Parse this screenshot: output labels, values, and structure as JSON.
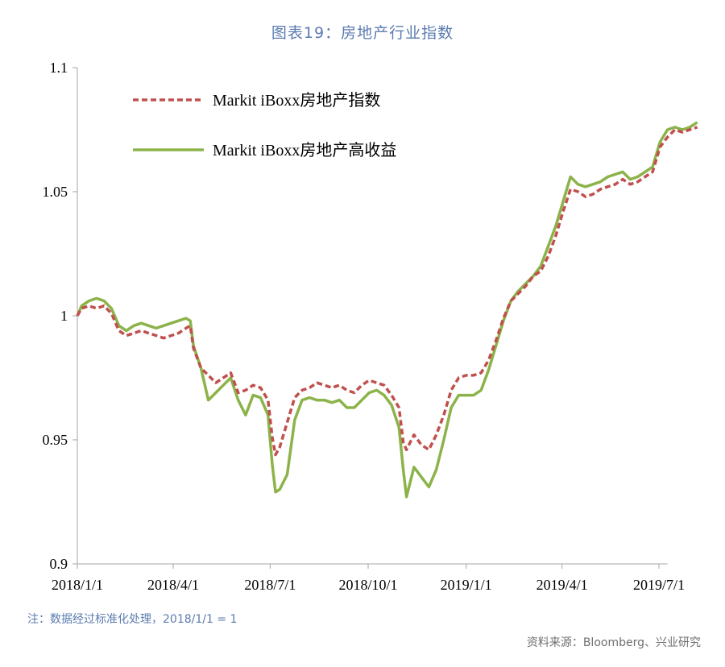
{
  "title": "图表19：房地产行业指数",
  "note": "注：数据经过标准化处理，2018/1/1 = 1",
  "source": "资料来源：Bloomberg、兴业研究",
  "chart_data": {
    "type": "line",
    "ylim": [
      0.9,
      1.1
    ],
    "yticks": [
      "0.9",
      "0.95",
      "1",
      "1.05",
      "1.1"
    ],
    "xticks": [
      "2018/1/1",
      "2018/4/1",
      "2018/7/1",
      "2018/10/1",
      "2019/1/1",
      "2019/4/1",
      "2019/7/1"
    ],
    "xrange": [
      "2018/1/1",
      "2019/7/9"
    ],
    "legend_position": "top-left",
    "series": [
      {
        "name": "Markit iBoxx房地产指数",
        "color": "#c0504d",
        "style": "dashed",
        "points": [
          [
            "2018/1/1",
            1.0
          ],
          [
            "2018/1/5",
            1.003
          ],
          [
            "2018/1/12",
            1.004
          ],
          [
            "2018/1/19",
            1.003
          ],
          [
            "2018/1/26",
            1.004
          ],
          [
            "2018/2/2",
            1.001
          ],
          [
            "2018/2/9",
            0.994
          ],
          [
            "2018/2/16",
            0.992
          ],
          [
            "2018/2/23",
            0.993
          ],
          [
            "2018/3/2",
            0.994
          ],
          [
            "2018/3/9",
            0.993
          ],
          [
            "2018/3/16",
            0.992
          ],
          [
            "2018/3/23",
            0.991
          ],
          [
            "2018/3/30",
            0.992
          ],
          [
            "2018/4/6",
            0.993
          ],
          [
            "2018/4/13",
            0.995
          ],
          [
            "2018/4/17",
            0.996
          ],
          [
            "2018/4/20",
            0.987
          ],
          [
            "2018/4/27",
            0.979
          ],
          [
            "2018/5/4",
            0.976
          ],
          [
            "2018/5/11",
            0.973
          ],
          [
            "2018/5/18",
            0.975
          ],
          [
            "2018/5/25",
            0.977
          ],
          [
            "2018/6/1",
            0.969
          ],
          [
            "2018/6/8",
            0.97
          ],
          [
            "2018/6/15",
            0.972
          ],
          [
            "2018/6/22",
            0.971
          ],
          [
            "2018/6/29",
            0.966
          ],
          [
            "2018/7/3",
            0.951
          ],
          [
            "2018/7/6",
            0.944
          ],
          [
            "2018/7/10",
            0.947
          ],
          [
            "2018/7/17",
            0.957
          ],
          [
            "2018/7/24",
            0.967
          ],
          [
            "2018/7/31",
            0.97
          ],
          [
            "2018/8/7",
            0.971
          ],
          [
            "2018/8/14",
            0.973
          ],
          [
            "2018/8/21",
            0.972
          ],
          [
            "2018/8/28",
            0.971
          ],
          [
            "2018/9/4",
            0.972
          ],
          [
            "2018/9/11",
            0.97
          ],
          [
            "2018/9/18",
            0.969
          ],
          [
            "2018/9/25",
            0.972
          ],
          [
            "2018/10/2",
            0.974
          ],
          [
            "2018/10/9",
            0.973
          ],
          [
            "2018/10/16",
            0.972
          ],
          [
            "2018/10/23",
            0.968
          ],
          [
            "2018/10/30",
            0.963
          ],
          [
            "2018/11/3",
            0.949
          ],
          [
            "2018/11/6",
            0.946
          ],
          [
            "2018/11/13",
            0.952
          ],
          [
            "2018/11/20",
            0.948
          ],
          [
            "2018/11/27",
            0.946
          ],
          [
            "2018/12/4",
            0.952
          ],
          [
            "2018/12/11",
            0.96
          ],
          [
            "2018/12/18",
            0.97
          ],
          [
            "2018/12/25",
            0.975
          ],
          [
            "2019/1/1",
            0.976
          ],
          [
            "2019/1/8",
            0.976
          ],
          [
            "2019/1/15",
            0.977
          ],
          [
            "2019/1/22",
            0.982
          ],
          [
            "2019/1/29",
            0.99
          ],
          [
            "2019/2/5",
            0.999
          ],
          [
            "2019/2/12",
            1.006
          ],
          [
            "2019/2/19",
            1.009
          ],
          [
            "2019/2/26",
            1.012
          ],
          [
            "2019/3/5",
            1.016
          ],
          [
            "2019/3/12",
            1.018
          ],
          [
            "2019/3/19",
            1.024
          ],
          [
            "2019/3/26",
            1.032
          ],
          [
            "2019/4/2",
            1.042
          ],
          [
            "2019/4/9",
            1.051
          ],
          [
            "2019/4/16",
            1.05
          ],
          [
            "2019/4/23",
            1.048
          ],
          [
            "2019/4/30",
            1.049
          ],
          [
            "2019/5/7",
            1.051
          ],
          [
            "2019/5/14",
            1.052
          ],
          [
            "2019/5/21",
            1.053
          ],
          [
            "2019/5/28",
            1.055
          ],
          [
            "2019/6/4",
            1.053
          ],
          [
            "2019/6/11",
            1.054
          ],
          [
            "2019/6/18",
            1.056
          ],
          [
            "2019/6/25",
            1.058
          ],
          [
            "2019/7/2",
            1.068
          ],
          [
            "2019/7/9",
            1.072
          ],
          [
            "2019/7/16",
            1.075
          ],
          [
            "2019/7/23",
            1.074
          ],
          [
            "2019/7/30",
            1.075
          ],
          [
            "2019/8/6",
            1.076
          ]
        ]
      },
      {
        "name": "Markit iBoxx房地产高收益",
        "color": "#8cb34a",
        "style": "solid",
        "points": [
          [
            "2018/1/1",
            1.0
          ],
          [
            "2018/1/5",
            1.004
          ],
          [
            "2018/1/12",
            1.006
          ],
          [
            "2018/1/19",
            1.007
          ],
          [
            "2018/1/26",
            1.006
          ],
          [
            "2018/2/2",
            1.003
          ],
          [
            "2018/2/9",
            0.996
          ],
          [
            "2018/2/16",
            0.994
          ],
          [
            "2018/2/23",
            0.996
          ],
          [
            "2018/3/2",
            0.997
          ],
          [
            "2018/3/9",
            0.996
          ],
          [
            "2018/3/16",
            0.995
          ],
          [
            "2018/3/23",
            0.996
          ],
          [
            "2018/3/30",
            0.997
          ],
          [
            "2018/4/6",
            0.998
          ],
          [
            "2018/4/13",
            0.999
          ],
          [
            "2018/4/17",
            0.998
          ],
          [
            "2018/4/20",
            0.988
          ],
          [
            "2018/4/27",
            0.979
          ],
          [
            "2018/5/4",
            0.966
          ],
          [
            "2018/5/11",
            0.969
          ],
          [
            "2018/5/18",
            0.972
          ],
          [
            "2018/5/25",
            0.975
          ],
          [
            "2018/6/1",
            0.966
          ],
          [
            "2018/6/8",
            0.96
          ],
          [
            "2018/6/15",
            0.968
          ],
          [
            "2018/6/22",
            0.967
          ],
          [
            "2018/6/29",
            0.96
          ],
          [
            "2018/7/3",
            0.94
          ],
          [
            "2018/7/6",
            0.929
          ],
          [
            "2018/7/10",
            0.93
          ],
          [
            "2018/7/17",
            0.936
          ],
          [
            "2018/7/24",
            0.958
          ],
          [
            "2018/7/31",
            0.966
          ],
          [
            "2018/8/7",
            0.967
          ],
          [
            "2018/8/14",
            0.966
          ],
          [
            "2018/8/21",
            0.966
          ],
          [
            "2018/8/28",
            0.965
          ],
          [
            "2018/9/4",
            0.966
          ],
          [
            "2018/9/11",
            0.963
          ],
          [
            "2018/9/18",
            0.963
          ],
          [
            "2018/9/25",
            0.966
          ],
          [
            "2018/10/2",
            0.969
          ],
          [
            "2018/10/9",
            0.97
          ],
          [
            "2018/10/16",
            0.968
          ],
          [
            "2018/10/23",
            0.964
          ],
          [
            "2018/10/30",
            0.955
          ],
          [
            "2018/11/3",
            0.938
          ],
          [
            "2018/11/6",
            0.927
          ],
          [
            "2018/11/13",
            0.939
          ],
          [
            "2018/11/20",
            0.935
          ],
          [
            "2018/11/27",
            0.931
          ],
          [
            "2018/12/4",
            0.938
          ],
          [
            "2018/12/11",
            0.95
          ],
          [
            "2018/12/18",
            0.963
          ],
          [
            "2018/12/25",
            0.968
          ],
          [
            "2019/1/1",
            0.968
          ],
          [
            "2019/1/8",
            0.968
          ],
          [
            "2019/1/15",
            0.97
          ],
          [
            "2019/1/22",
            0.978
          ],
          [
            "2019/1/29",
            0.988
          ],
          [
            "2019/2/5",
            0.998
          ],
          [
            "2019/2/12",
            1.006
          ],
          [
            "2019/2/19",
            1.01
          ],
          [
            "2019/2/26",
            1.013
          ],
          [
            "2019/3/5",
            1.016
          ],
          [
            "2019/3/12",
            1.02
          ],
          [
            "2019/3/19",
            1.028
          ],
          [
            "2019/3/26",
            1.036
          ],
          [
            "2019/4/2",
            1.046
          ],
          [
            "2019/4/9",
            1.056
          ],
          [
            "2019/4/16",
            1.053
          ],
          [
            "2019/4/23",
            1.052
          ],
          [
            "2019/4/30",
            1.053
          ],
          [
            "2019/5/7",
            1.054
          ],
          [
            "2019/5/14",
            1.056
          ],
          [
            "2019/5/21",
            1.057
          ],
          [
            "2019/5/28",
            1.058
          ],
          [
            "2019/6/4",
            1.055
          ],
          [
            "2019/6/11",
            1.056
          ],
          [
            "2019/6/18",
            1.058
          ],
          [
            "2019/6/25",
            1.06
          ],
          [
            "2019/7/2",
            1.07
          ],
          [
            "2019/7/9",
            1.075
          ],
          [
            "2019/7/16",
            1.076
          ],
          [
            "2019/7/23",
            1.075
          ],
          [
            "2019/7/30",
            1.076
          ],
          [
            "2019/8/6",
            1.078
          ]
        ]
      }
    ]
  }
}
